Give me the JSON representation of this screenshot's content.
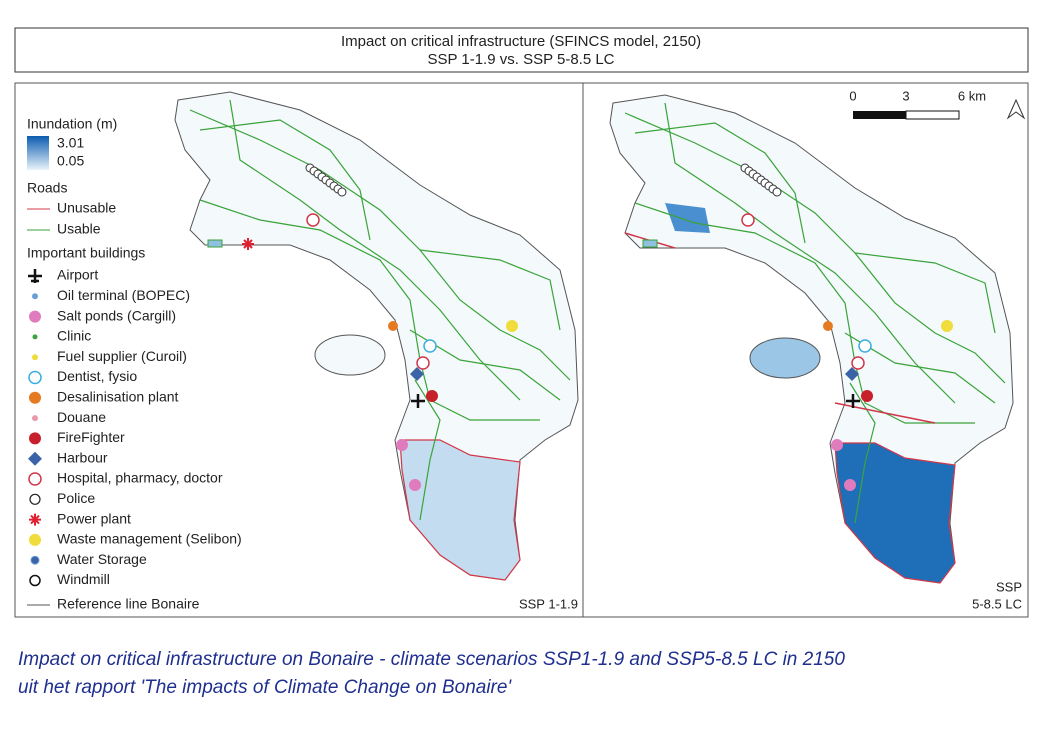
{
  "title": {
    "line1": "Impact on critical infrastructure (SFINCS model, 2150)",
    "line2": "SSP 1-1.9 vs. SSP 5-8.5 LC"
  },
  "legend": {
    "inundation": {
      "title": "Inundation (m)",
      "max": "3.01",
      "min": "0.05"
    },
    "roads": {
      "title": "Roads",
      "items": [
        "Unusable",
        "Usable"
      ]
    },
    "buildings": {
      "title": "Important buildings",
      "items": [
        "Airport",
        "Oil terminal (BOPEC)",
        "Salt ponds (Cargill)",
        "Clinic",
        "Fuel supplier (Curoil)",
        "Dentist, fysio",
        "Desalinisation plant",
        "Douane",
        "FireFighter",
        "Harbour",
        "Hospital, pharmacy, doctor",
        "Police",
        "Power plant",
        "Waste management (Selibon)",
        "Water Storage",
        "Windmill"
      ]
    },
    "reference": "Reference line Bonaire"
  },
  "panels": {
    "left": "SSP 1-1.9",
    "right": [
      "SSP",
      "5-8.5 LC"
    ]
  },
  "scale_bar": [
    "0",
    "3",
    "6 km"
  ],
  "caption": [
    "Impact on critical infrastructure on Bonaire - climate scenarios SSP1-1.9 and SSP5-8.5 LC in 2150",
    "uit het rapport 'The impacts of Climate Change on Bonaire'"
  ]
}
